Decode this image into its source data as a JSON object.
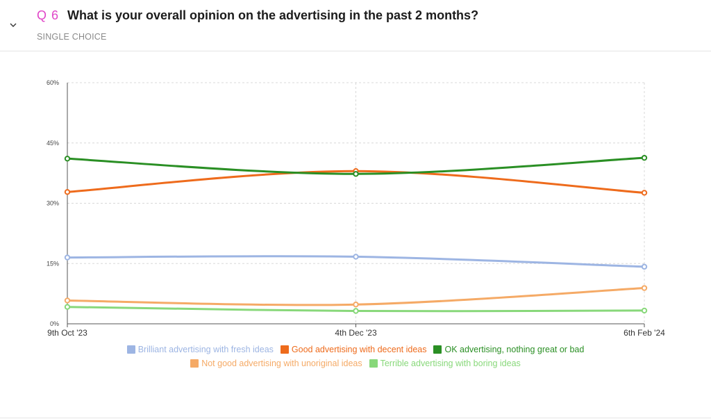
{
  "question": {
    "number": "Q 6",
    "title": "What is your overall opinion on the advertising in the past 2 months?",
    "type": "SINGLE CHOICE",
    "collapse_icon": "chevron-down-icon"
  },
  "colors": {
    "question_number": "#e046c8",
    "grid": "#d8d8d8",
    "axis": "#555555"
  },
  "chart_data": {
    "type": "line",
    "title": "",
    "xlabel": "",
    "ylabel": "",
    "x": [
      "9th Oct '23",
      "4th Dec '23",
      "6th Feb '24"
    ],
    "ylim": [
      0,
      60
    ],
    "y_ticks": [
      0,
      15,
      30,
      45,
      60
    ],
    "y_tick_labels": [
      "0%",
      "15%",
      "30%",
      "45%",
      "60%"
    ],
    "grid": true,
    "legend_position": "bottom",
    "series": [
      {
        "name": "Brilliant advertising with fresh ideas",
        "color": "#9db5e3",
        "values": [
          16.5,
          16.7,
          14.2
        ]
      },
      {
        "name": "Good advertising with decent ideas",
        "color": "#ee6b1c",
        "values": [
          32.8,
          38.0,
          32.6
        ]
      },
      {
        "name": "OK advertising, nothing great or bad",
        "color": "#2a8f24",
        "values": [
          41.1,
          37.3,
          41.3
        ]
      },
      {
        "name": "Not good advertising with unoriginal ideas",
        "color": "#f5aa66",
        "values": [
          5.8,
          4.8,
          8.9
        ]
      },
      {
        "name": "Terrible advertising with boring ideas",
        "color": "#88d87a",
        "values": [
          4.2,
          3.2,
          3.3
        ]
      }
    ]
  }
}
